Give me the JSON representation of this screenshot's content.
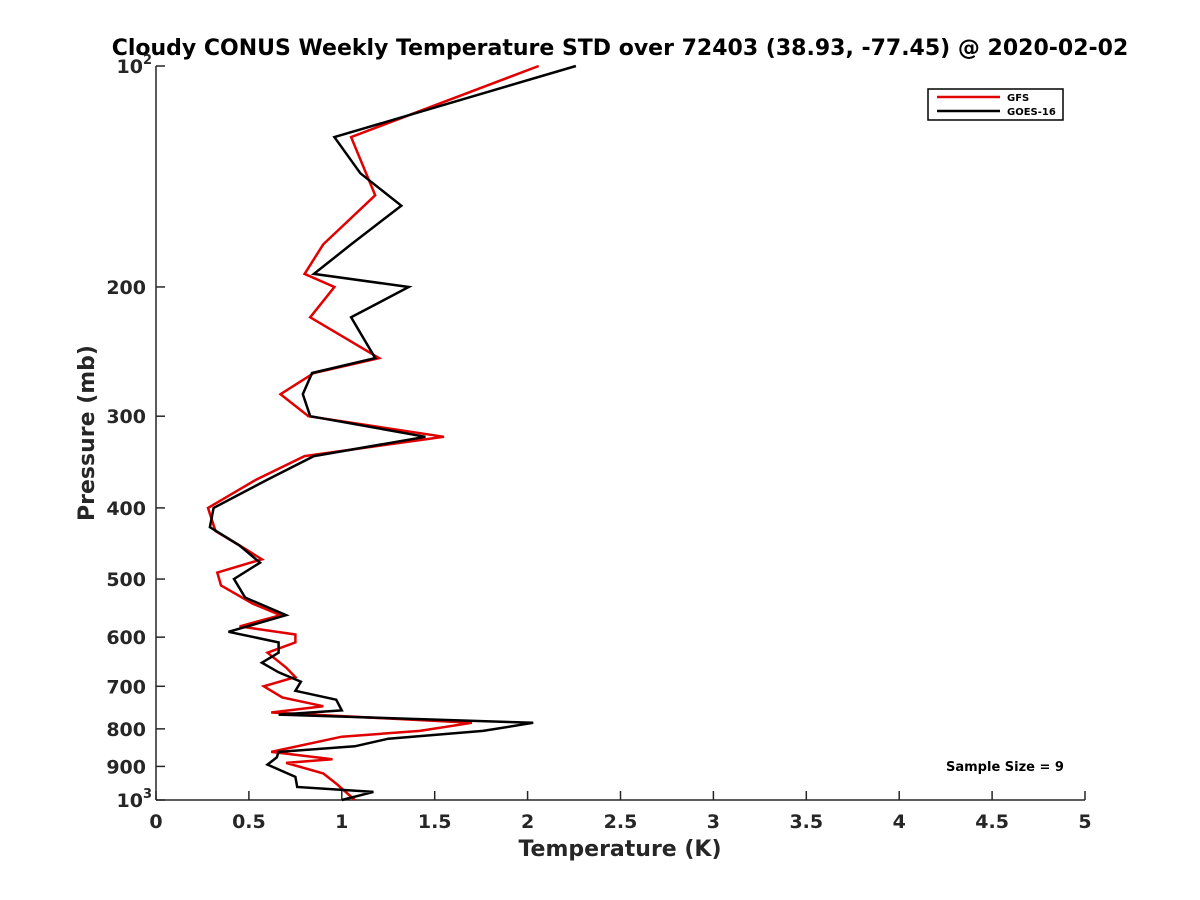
{
  "chart_data": {
    "type": "line",
    "title": "Cloudy CONUS Weekly Temperature STD over 72403 (38.93, -77.45) @ 2020-02-02",
    "xlabel": "Temperature (K)",
    "ylabel": "Pressure (mb)",
    "xlim": [
      0,
      5
    ],
    "ylim": [
      100,
      1000
    ],
    "y_scale": "log",
    "y_reversed": true,
    "x_ticks": [
      "0",
      "0.5",
      "1",
      "1.5",
      "2",
      "2.5",
      "3",
      "3.5",
      "4",
      "4.5",
      "5"
    ],
    "y_ticks": [
      {
        "value": 100,
        "label": "10",
        "exp": "2"
      },
      {
        "value": 200,
        "label": "200"
      },
      {
        "value": 300,
        "label": "300"
      },
      {
        "value": 400,
        "label": "400"
      },
      {
        "value": 500,
        "label": "500"
      },
      {
        "value": 600,
        "label": "600"
      },
      {
        "value": 700,
        "label": "700"
      },
      {
        "value": 800,
        "label": "800"
      },
      {
        "value": 900,
        "label": "900"
      },
      {
        "value": 1000,
        "label": "10",
        "exp": "3"
      }
    ],
    "grid": false,
    "legend_position": "top-right",
    "annotation": "Sample Size = 9",
    "series": [
      {
        "name": "GFS",
        "color": "#e00000",
        "points": [
          [
            2.06,
            100
          ],
          [
            1.05,
            125
          ],
          [
            1.18,
            150
          ],
          [
            0.9,
            175
          ],
          [
            0.8,
            192
          ],
          [
            0.96,
            200
          ],
          [
            0.83,
            220
          ],
          [
            1.2,
            250
          ],
          [
            0.85,
            262
          ],
          [
            0.67,
            280
          ],
          [
            0.82,
            300
          ],
          [
            1.55,
            320
          ],
          [
            0.8,
            340
          ],
          [
            0.54,
            366
          ],
          [
            0.28,
            400
          ],
          [
            0.32,
            430
          ],
          [
            0.45,
            450
          ],
          [
            0.57,
            470
          ],
          [
            0.33,
            490
          ],
          [
            0.35,
            510
          ],
          [
            0.52,
            540
          ],
          [
            0.67,
            560
          ],
          [
            0.45,
            580
          ],
          [
            0.75,
            595
          ],
          [
            0.75,
            610
          ],
          [
            0.6,
            630
          ],
          [
            0.7,
            660
          ],
          [
            0.75,
            680
          ],
          [
            0.58,
            700
          ],
          [
            0.68,
            725
          ],
          [
            0.9,
            745
          ],
          [
            0.62,
            760
          ],
          [
            1.7,
            785
          ],
          [
            1.42,
            805
          ],
          [
            1.0,
            820
          ],
          [
            0.62,
            860
          ],
          [
            0.95,
            880
          ],
          [
            0.7,
            890
          ],
          [
            0.9,
            920
          ],
          [
            0.97,
            950
          ],
          [
            1.07,
            1000
          ]
        ]
      },
      {
        "name": "GOES-16",
        "color": "#000000",
        "points": [
          [
            2.26,
            100
          ],
          [
            0.96,
            125
          ],
          [
            1.1,
            140
          ],
          [
            1.32,
            155
          ],
          [
            1.05,
            175
          ],
          [
            0.85,
            192
          ],
          [
            1.36,
            200
          ],
          [
            1.05,
            220
          ],
          [
            1.18,
            250
          ],
          [
            0.84,
            262
          ],
          [
            0.79,
            280
          ],
          [
            0.83,
            300
          ],
          [
            1.45,
            320
          ],
          [
            0.85,
            340
          ],
          [
            0.6,
            366
          ],
          [
            0.31,
            400
          ],
          [
            0.29,
            425
          ],
          [
            0.45,
            450
          ],
          [
            0.56,
            475
          ],
          [
            0.42,
            500
          ],
          [
            0.48,
            530
          ],
          [
            0.7,
            560
          ],
          [
            0.39,
            590
          ],
          [
            0.66,
            610
          ],
          [
            0.66,
            630
          ],
          [
            0.57,
            650
          ],
          [
            0.66,
            670
          ],
          [
            0.78,
            690
          ],
          [
            0.75,
            710
          ],
          [
            0.97,
            730
          ],
          [
            1.0,
            755
          ],
          [
            0.66,
            765
          ],
          [
            2.03,
            785
          ],
          [
            1.76,
            805
          ],
          [
            1.25,
            825
          ],
          [
            1.07,
            845
          ],
          [
            0.66,
            860
          ],
          [
            0.65,
            875
          ],
          [
            0.6,
            895
          ],
          [
            0.75,
            930
          ],
          [
            0.76,
            960
          ],
          [
            1.17,
            975
          ],
          [
            1.0,
            1000
          ]
        ]
      }
    ]
  }
}
